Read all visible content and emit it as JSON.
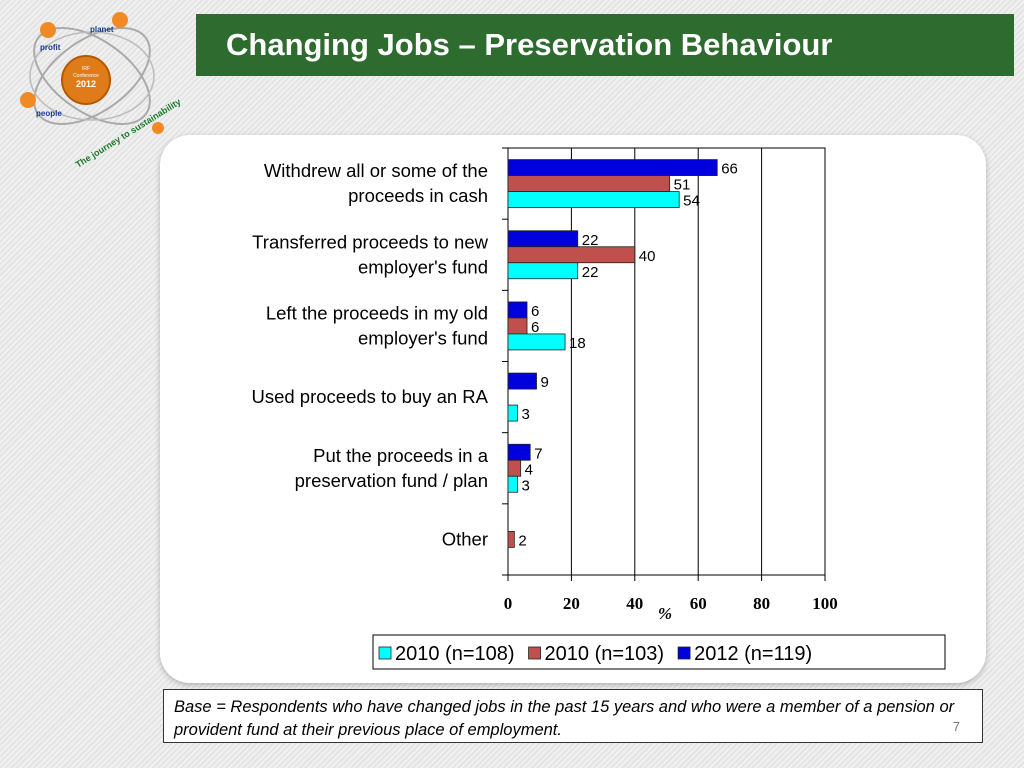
{
  "logo": {
    "words": [
      "planet",
      "profit",
      "people"
    ],
    "badge_line1": "IRF",
    "badge_line2": "Conference",
    "badge_year": "2012",
    "tagline": "The journey to sustainability"
  },
  "slide": {
    "title": "Changing Jobs – Preservation Behaviour",
    "base_note": "Base = Respondents who have changed jobs in the past 15 years and who were a member of a pension or provident fund at their previous place of employment.",
    "page_number": "7"
  },
  "chart_data": {
    "type": "bar",
    "orientation": "horizontal",
    "categories": [
      [
        "Withdrew all or some of the",
        "proceeds in cash"
      ],
      [
        "Transferred proceeds to new",
        "employer's fund"
      ],
      [
        "Left the proceeds in my old",
        "employer's fund"
      ],
      [
        "Used proceeds to buy an RA"
      ],
      [
        "Put the proceeds in a",
        "preservation fund / plan"
      ],
      [
        "Other"
      ]
    ],
    "series": [
      {
        "name": "2012 (n=119)",
        "color": "#0000dd",
        "values": [
          66,
          22,
          6,
          9,
          7,
          null
        ]
      },
      {
        "name": "2010 (n=103)",
        "color": "#c0504d",
        "values": [
          51,
          40,
          6,
          null,
          4,
          2
        ]
      },
      {
        "name": "2010 (n=108)",
        "color": "#00ffff",
        "values": [
          54,
          22,
          18,
          3,
          3,
          null
        ]
      }
    ],
    "legend_order": [
      2,
      1,
      0
    ],
    "xlabel": "%",
    "xlim": [
      0,
      100
    ],
    "xticks": [
      0,
      20,
      40,
      60,
      80,
      100
    ],
    "grid": "vertical",
    "legend": "bottom"
  }
}
